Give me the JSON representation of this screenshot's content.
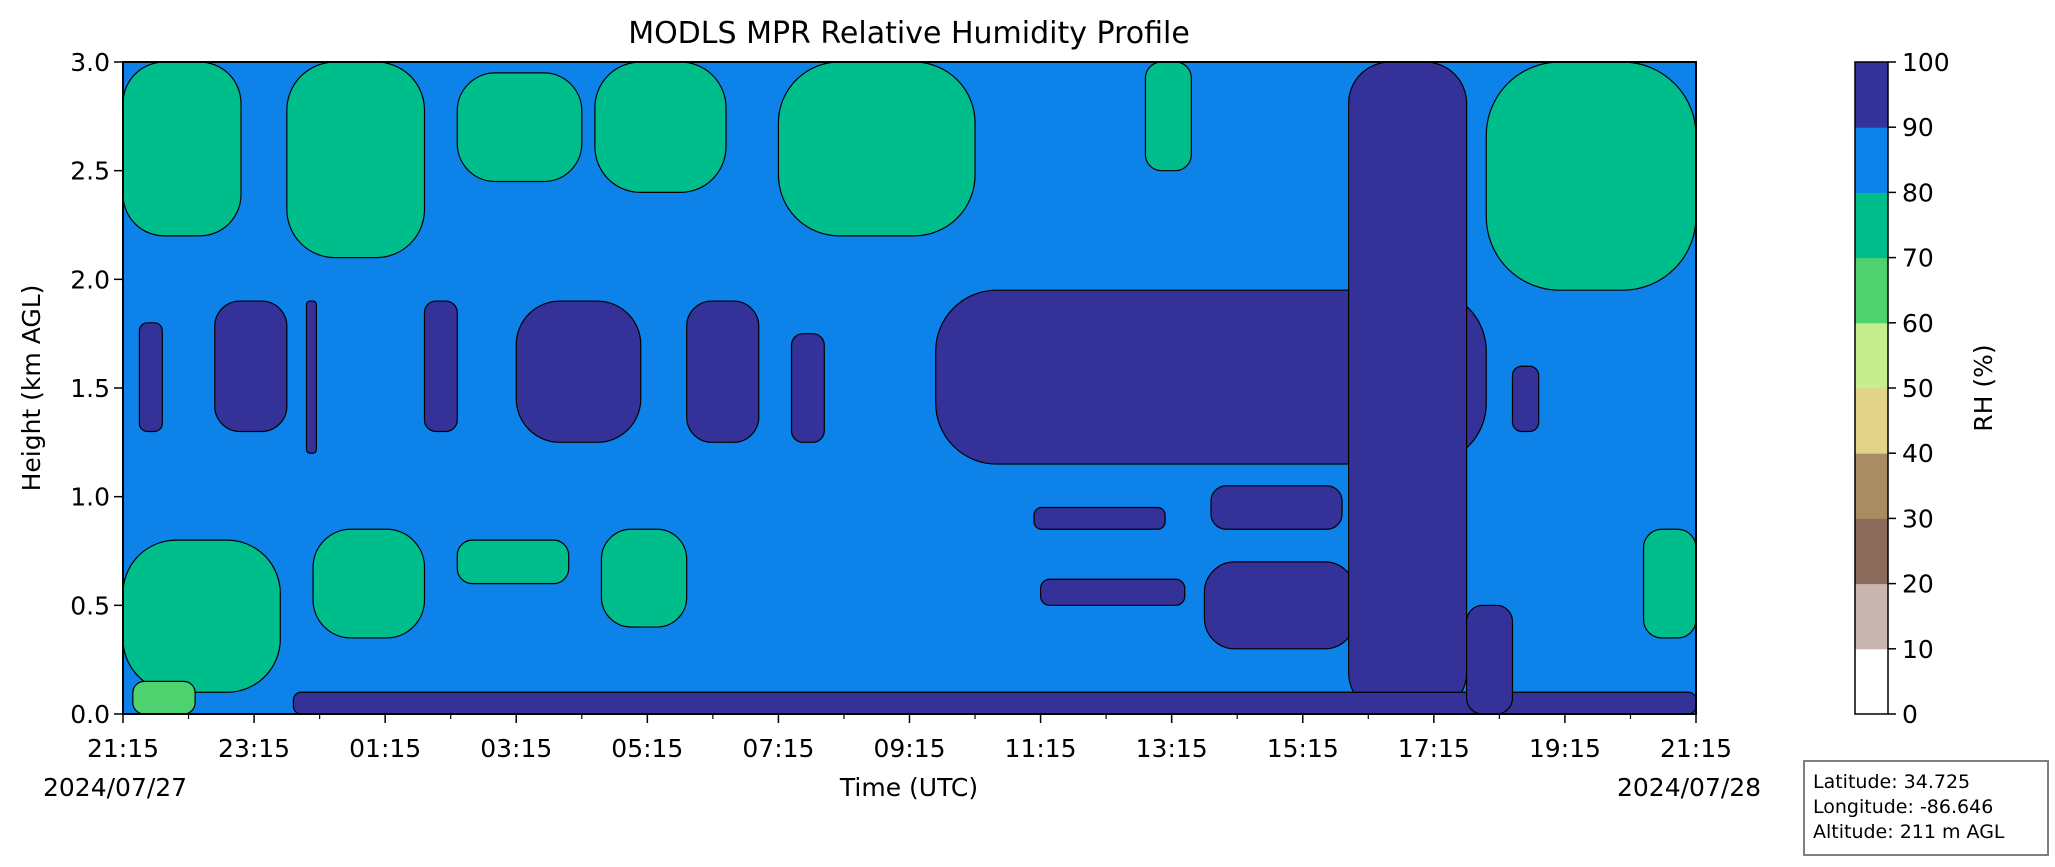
{
  "chart_data": {
    "type": "heatmap",
    "subtype": "filled-contour",
    "title": "MODLS MPR Relative Humidity Profile",
    "xlabel": "Time (UTC)",
    "ylabel": "Height (km AGL)",
    "x_start_date": "2024/07/27",
    "x_end_date": "2024/07/28",
    "x_ticks": [
      "21:15",
      "23:15",
      "01:15",
      "03:15",
      "05:15",
      "07:15",
      "09:15",
      "11:15",
      "13:15",
      "15:15",
      "17:15",
      "19:15",
      "21:15"
    ],
    "xlim_hours": [
      0,
      24
    ],
    "y_ticks": [
      "0.0",
      "0.5",
      "1.0",
      "1.5",
      "2.0",
      "2.5",
      "3.0"
    ],
    "ylim": [
      0,
      3.0
    ],
    "colorbar": {
      "label": "RH (%)",
      "levels": [
        0,
        10,
        20,
        30,
        40,
        50,
        60,
        70,
        80,
        90,
        100
      ],
      "tick_labels": [
        "0",
        "10",
        "20",
        "30",
        "40",
        "50",
        "60",
        "70",
        "80",
        "90",
        "100"
      ],
      "colors": [
        "#ffffff",
        "#c9b6b0",
        "#8b6b5c",
        "#a88c62",
        "#e2d38a",
        "#c6ee8e",
        "#4ed16f",
        "#00be8c",
        "#0d82e9",
        "#343299"
      ]
    },
    "background_band": "80-90",
    "regions": [
      {
        "band": "70-80",
        "t0": 0,
        "t1": 1.8,
        "h0": 2.2,
        "h1": 3.0
      },
      {
        "band": "70-80",
        "t0": 2.5,
        "t1": 4.6,
        "h0": 2.1,
        "h1": 3.0
      },
      {
        "band": "70-80",
        "t0": 5.1,
        "t1": 7.0,
        "h0": 2.45,
        "h1": 2.95
      },
      {
        "band": "70-80",
        "t0": 7.2,
        "t1": 9.2,
        "h0": 2.4,
        "h1": 3.0
      },
      {
        "band": "70-80",
        "t0": 10.0,
        "t1": 13.0,
        "h0": 2.2,
        "h1": 3.0
      },
      {
        "band": "70-80",
        "t0": 15.6,
        "t1": 16.3,
        "h0": 2.5,
        "h1": 3.0
      },
      {
        "band": "70-80",
        "t0": 20.8,
        "t1": 24.0,
        "h0": 1.95,
        "h1": 3.0
      },
      {
        "band": "70-80",
        "t0": 0,
        "t1": 2.4,
        "h0": 0.1,
        "h1": 0.8
      },
      {
        "band": "70-80",
        "t0": 2.9,
        "t1": 4.6,
        "h0": 0.35,
        "h1": 0.85
      },
      {
        "band": "70-80",
        "t0": 5.1,
        "t1": 6.8,
        "h0": 0.6,
        "h1": 0.8
      },
      {
        "band": "70-80",
        "t0": 7.3,
        "t1": 8.6,
        "h0": 0.4,
        "h1": 0.85
      },
      {
        "band": "70-80",
        "t0": 23.2,
        "t1": 24.0,
        "h0": 0.35,
        "h1": 0.85
      },
      {
        "band": "60-70",
        "t0": 0.15,
        "t1": 1.1,
        "h0": 0.0,
        "h1": 0.15
      },
      {
        "band": "90-100",
        "t0": 0.25,
        "t1": 0.6,
        "h0": 1.3,
        "h1": 1.8
      },
      {
        "band": "90-100",
        "t0": 1.4,
        "t1": 2.5,
        "h0": 1.3,
        "h1": 1.9
      },
      {
        "band": "90-100",
        "t0": 2.8,
        "t1": 2.95,
        "h0": 1.2,
        "h1": 1.9
      },
      {
        "band": "90-100",
        "t0": 4.6,
        "t1": 5.1,
        "h0": 1.3,
        "h1": 1.9
      },
      {
        "band": "90-100",
        "t0": 6.0,
        "t1": 7.9,
        "h0": 1.25,
        "h1": 1.9
      },
      {
        "band": "90-100",
        "t0": 8.6,
        "t1": 9.7,
        "h0": 1.25,
        "h1": 1.9
      },
      {
        "band": "90-100",
        "t0": 10.2,
        "t1": 10.7,
        "h0": 1.25,
        "h1": 1.75
      },
      {
        "band": "90-100",
        "t0": 12.4,
        "t1": 20.8,
        "h0": 1.15,
        "h1": 1.95
      },
      {
        "band": "90-100",
        "t0": 13.9,
        "t1": 15.9,
        "h0": 0.85,
        "h1": 0.95
      },
      {
        "band": "90-100",
        "t0": 16.6,
        "t1": 18.6,
        "h0": 0.85,
        "h1": 1.05
      },
      {
        "band": "90-100",
        "t0": 14.0,
        "t1": 16.2,
        "h0": 0.5,
        "h1": 0.62
      },
      {
        "band": "90-100",
        "t0": 16.5,
        "t1": 18.8,
        "h0": 0.3,
        "h1": 0.7
      },
      {
        "band": "90-100",
        "t0": 18.7,
        "t1": 20.5,
        "h0": 0.0,
        "h1": 3.0
      },
      {
        "band": "90-100",
        "t0": 2.6,
        "t1": 24.0,
        "h0": 0.0,
        "h1": 0.1
      },
      {
        "band": "90-100",
        "t0": 20.5,
        "t1": 21.2,
        "h0": 0.0,
        "h1": 0.5
      },
      {
        "band": "90-100",
        "t0": 21.2,
        "t1": 21.6,
        "h0": 1.3,
        "h1": 1.6
      }
    ]
  },
  "info_box": {
    "latitude": "Latitude: 34.725",
    "longitude": "Longitude: -86.646",
    "altitude": "Altitude: 211 m AGL"
  }
}
